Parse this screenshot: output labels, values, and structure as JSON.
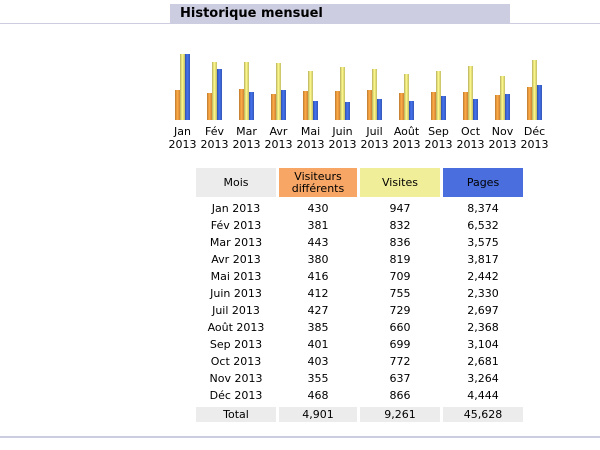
{
  "section": {
    "title": "Historique mensuel"
  },
  "table": {
    "headers": {
      "month": "Mois",
      "visitors_line1": "Visiteurs",
      "visitors_line2": "différents",
      "visits": "Visites",
      "pages": "Pages"
    },
    "rows": [
      {
        "month": "Jan 2013",
        "visitors": "430",
        "visits": "947",
        "pages": "8,374"
      },
      {
        "month": "Fév 2013",
        "visitors": "381",
        "visits": "832",
        "pages": "6,532"
      },
      {
        "month": "Mar 2013",
        "visitors": "443",
        "visits": "836",
        "pages": "3,575"
      },
      {
        "month": "Avr 2013",
        "visitors": "380",
        "visits": "819",
        "pages": "3,817"
      },
      {
        "month": "Mai 2013",
        "visitors": "416",
        "visits": "709",
        "pages": "2,442"
      },
      {
        "month": "Juin 2013",
        "visitors": "412",
        "visits": "755",
        "pages": "2,330"
      },
      {
        "month": "Juil 2013",
        "visitors": "427",
        "visits": "729",
        "pages": "2,697"
      },
      {
        "month": "Août 2013",
        "visitors": "385",
        "visits": "660",
        "pages": "2,368"
      },
      {
        "month": "Sep 2013",
        "visitors": "401",
        "visits": "699",
        "pages": "3,104"
      },
      {
        "month": "Oct 2013",
        "visitors": "403",
        "visits": "772",
        "pages": "2,681"
      },
      {
        "month": "Nov 2013",
        "visitors": "355",
        "visits": "637",
        "pages": "3,264"
      },
      {
        "month": "Déc 2013",
        "visitors": "468",
        "visits": "866",
        "pages": "4,444"
      }
    ],
    "total": {
      "label": "Total",
      "visitors": "4,901",
      "visits": "9,261",
      "pages": "45,628"
    }
  },
  "chart_data": {
    "type": "bar",
    "categories": [
      "Jan",
      "Fév",
      "Mar",
      "Avr",
      "Mai",
      "Juin",
      "Juil",
      "Août",
      "Sep",
      "Oct",
      "Nov",
      "Déc"
    ],
    "category_years": [
      "2013",
      "2013",
      "2013",
      "2013",
      "2013",
      "2013",
      "2013",
      "2013",
      "2013",
      "2013",
      "2013",
      "2013"
    ],
    "series": [
      {
        "key": "visitors",
        "color": "#f09a3e",
        "values": [
          430,
          381,
          443,
          380,
          416,
          412,
          427,
          385,
          401,
          403,
          355,
          468
        ]
      },
      {
        "key": "visits",
        "color": "#e6df7a",
        "values": [
          947,
          832,
          836,
          819,
          709,
          755,
          729,
          660,
          699,
          772,
          637,
          866
        ]
      },
      {
        "key": "pages",
        "color": "#3d66d6",
        "values": [
          8374,
          6532,
          3575,
          3817,
          2442,
          2330,
          2697,
          2368,
          3104,
          2681,
          3264,
          4444
        ]
      }
    ],
    "scale_note": "visitors and visits share one scale (max 947); pages use their own scale (max 8374)"
  }
}
